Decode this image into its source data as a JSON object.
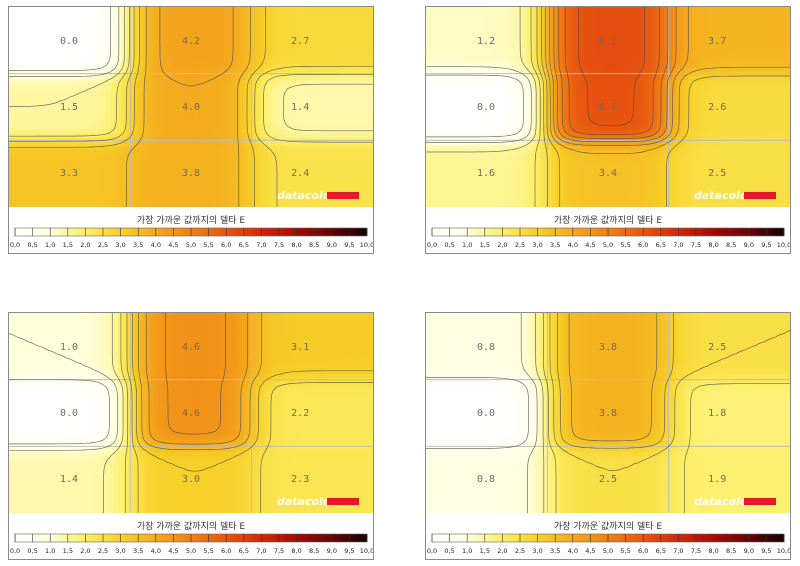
{
  "legend": {
    "title": "가장 가까운 값까지의 델타 E",
    "ticks": [
      "0,0",
      "0,5",
      "1,0",
      "1,5",
      "2,0",
      "2,5",
      "3,0",
      "3,5",
      "4,0",
      "4,5",
      "5,0",
      "5,5",
      "6,0",
      "6,5",
      "7,0",
      "7,5",
      "8,0",
      "8,5",
      "9,0",
      "9,5",
      "10,0"
    ]
  },
  "brand": "datacolor",
  "colors": {
    "brand_bar": "#e8182a",
    "grid": "#bdbdbd",
    "contour": "#4a4a4a"
  },
  "chart_data": [
    {
      "type": "heatmap",
      "rows": 3,
      "cols": 3,
      "values": [
        [
          0.0,
          4.2,
          2.7
        ],
        [
          1.5,
          4.0,
          1.4
        ],
        [
          3.3,
          3.8,
          2.4
        ]
      ],
      "labels": [
        [
          "0.0",
          "4.2",
          "2.7"
        ],
        [
          "1.5",
          "4.0",
          "1.4"
        ],
        [
          "3.3",
          "3.8",
          "2.4"
        ]
      ],
      "scale_range": [
        0,
        10
      ]
    },
    {
      "type": "heatmap",
      "rows": 3,
      "cols": 3,
      "values": [
        [
          1.2,
          6.2,
          3.7
        ],
        [
          0.0,
          6.1,
          2.6
        ],
        [
          1.6,
          3.4,
          2.5
        ]
      ],
      "labels": [
        [
          "1.2",
          "6.2",
          "3.7"
        ],
        [
          "0.0",
          "6.1",
          "2.6"
        ],
        [
          "1.6",
          "3.4",
          "2.5"
        ]
      ],
      "scale_range": [
        0,
        10
      ]
    },
    {
      "type": "heatmap",
      "rows": 3,
      "cols": 3,
      "values": [
        [
          1.0,
          4.6,
          3.1
        ],
        [
          0.0,
          4.6,
          2.2
        ],
        [
          1.4,
          3.0,
          2.3
        ]
      ],
      "labels": [
        [
          "1.0",
          "4.6",
          "3.1"
        ],
        [
          "0.0",
          "4.6",
          "2.2"
        ],
        [
          "1.4",
          "3.0",
          "2.3"
        ]
      ],
      "scale_range": [
        0,
        10
      ]
    },
    {
      "type": "heatmap",
      "rows": 3,
      "cols": 3,
      "values": [
        [
          0.8,
          3.8,
          2.5
        ],
        [
          0.0,
          3.8,
          1.8
        ],
        [
          0.8,
          2.5,
          1.9
        ]
      ],
      "labels": [
        [
          "0.8",
          "3.8",
          "2.5"
        ],
        [
          "0.0",
          "3.8",
          "1.8"
        ],
        [
          "0.8",
          "2.5",
          "1.9"
        ]
      ],
      "scale_range": [
        0,
        10
      ]
    }
  ]
}
